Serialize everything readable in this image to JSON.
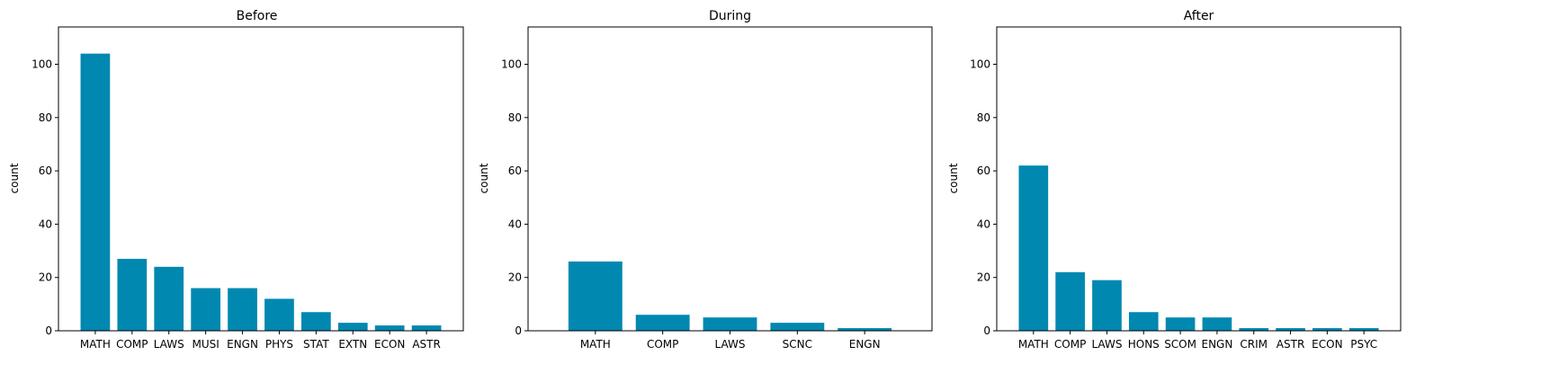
{
  "colors": {
    "bar": "#0088B0",
    "axes": "#000000",
    "background": "#ffffff"
  },
  "chart_data": [
    {
      "type": "bar",
      "title": "Before",
      "xlabel": "",
      "ylabel": "count",
      "ylim": [
        0,
        114
      ],
      "yticks": [
        0,
        20,
        40,
        60,
        80,
        100
      ],
      "grid": false,
      "categories": [
        "MATH",
        "COMP",
        "LAWS",
        "MUSI",
        "ENGN",
        "PHYS",
        "STAT",
        "EXTN",
        "ECON",
        "ASTR"
      ],
      "values": [
        104,
        27,
        24,
        16,
        16,
        12,
        7,
        3,
        2,
        2
      ]
    },
    {
      "type": "bar",
      "title": "During",
      "xlabel": "",
      "ylabel": "count",
      "ylim": [
        0,
        114
      ],
      "yticks": [
        0,
        20,
        40,
        60,
        80,
        100
      ],
      "grid": false,
      "categories": [
        "MATH",
        "COMP",
        "LAWS",
        "SCNC",
        "ENGN"
      ],
      "values": [
        26,
        6,
        5,
        3,
        1
      ]
    },
    {
      "type": "bar",
      "title": "After",
      "xlabel": "",
      "ylabel": "count",
      "ylim": [
        0,
        114
      ],
      "yticks": [
        0,
        20,
        40,
        60,
        80,
        100
      ],
      "grid": false,
      "categories": [
        "MATH",
        "COMP",
        "LAWS",
        "HONS",
        "SCOM",
        "ENGN",
        "CRIM",
        "ASTR",
        "ECON",
        "PSYC"
      ],
      "values": [
        62,
        22,
        19,
        7,
        5,
        5,
        1,
        1,
        1,
        1
      ]
    }
  ]
}
